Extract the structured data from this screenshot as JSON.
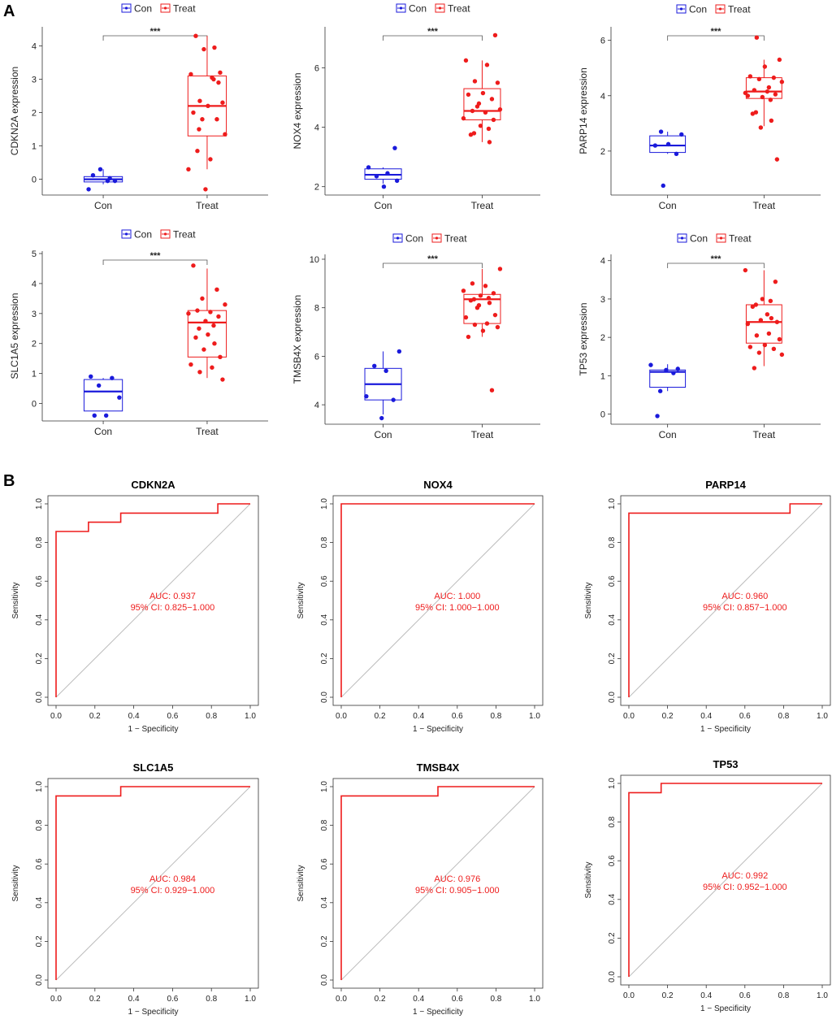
{
  "panels": {
    "a": "A",
    "b": "B"
  },
  "colors": {
    "con": "#1a1adb",
    "treat": "#ee1c1c",
    "diag": "#bdbdbd",
    "axis": "#333333"
  },
  "chart_data": [
    {
      "type": "box",
      "id": "box-cdkn2a",
      "gene": "CDKN2A",
      "ylabel": "CDKN2A expression",
      "categories": [
        "Con",
        "Treat"
      ],
      "legend": [
        "Con",
        "Treat"
      ],
      "significance": "***",
      "ylim": [
        -0.4,
        4.5
      ],
      "yticks": [
        0,
        1,
        2,
        3,
        4
      ],
      "boxes": [
        {
          "group": "Con",
          "min": -0.15,
          "q1": -0.08,
          "median": 0.0,
          "q3": 0.08,
          "max": 0.3
        },
        {
          "group": "Treat",
          "min": 0.3,
          "q1": 1.3,
          "median": 2.2,
          "q3": 3.1,
          "max": 4.3
        }
      ],
      "points": {
        "Con": [
          0.12,
          0.03,
          0.3,
          -0.05,
          -0.3,
          -0.05
        ],
        "Treat": [
          4.3,
          3.95,
          3.9,
          3.2,
          3.15,
          3.05,
          2.35,
          2.3,
          2.2,
          2.0,
          1.8,
          1.8,
          1.35,
          0.85,
          0.6,
          0.3,
          2.9,
          -0.3,
          3.0,
          1.5
        ]
      }
    },
    {
      "type": "box",
      "id": "box-nox4",
      "gene": "NOX4",
      "ylabel": "NOX4 expression",
      "categories": [
        "Con",
        "Treat"
      ],
      "legend": [
        "Con",
        "Treat"
      ],
      "significance": "***",
      "ylim": [
        1.8,
        7.3
      ],
      "yticks": [
        2,
        4,
        6
      ],
      "boxes": [
        {
          "group": "Con",
          "min": 2.1,
          "q1": 2.25,
          "median": 2.4,
          "q3": 2.6,
          "max": 2.65
        },
        {
          "group": "Treat",
          "min": 3.5,
          "q1": 4.25,
          "median": 4.55,
          "q3": 5.3,
          "max": 6.25
        }
      ],
      "points": {
        "Con": [
          3.3,
          2.65,
          2.45,
          2.35,
          2.2,
          2.0
        ],
        "Treat": [
          7.1,
          6.25,
          6.1,
          5.55,
          5.5,
          5.15,
          5.1,
          4.95,
          4.7,
          4.6,
          4.55,
          4.5,
          4.3,
          4.25,
          4.05,
          3.95,
          3.8,
          3.75,
          3.5,
          4.8
        ]
      }
    },
    {
      "type": "box",
      "id": "box-parp14",
      "gene": "PARP14",
      "ylabel": "PARP14 expression",
      "categories": [
        "Con",
        "Treat"
      ],
      "legend": [
        "Con",
        "Treat"
      ],
      "significance": "***",
      "ylim": [
        0.5,
        6.4
      ],
      "yticks": [
        2,
        4,
        6
      ],
      "boxes": [
        {
          "group": "Con",
          "min": 1.9,
          "q1": 1.95,
          "median": 2.2,
          "q3": 2.55,
          "max": 2.7
        },
        {
          "group": "Treat",
          "min": 2.9,
          "q1": 3.9,
          "median": 4.15,
          "q3": 4.65,
          "max": 5.3
        }
      ],
      "points": {
        "Con": [
          2.7,
          2.6,
          2.25,
          2.2,
          1.9,
          0.75
        ],
        "Treat": [
          6.1,
          5.3,
          5.05,
          4.7,
          4.65,
          4.6,
          4.5,
          4.2,
          4.15,
          4.1,
          4.05,
          3.95,
          3.85,
          3.4,
          3.35,
          3.1,
          2.85,
          1.7,
          4.0,
          4.3
        ]
      }
    },
    {
      "type": "box",
      "id": "box-slc1a5",
      "gene": "SLC1A5",
      "ylabel": "SLC1A5 expression",
      "categories": [
        "Con",
        "Treat"
      ],
      "legend": [
        "Con",
        "Treat"
      ],
      "significance": "***",
      "ylim": [
        -0.5,
        5.0
      ],
      "yticks": [
        0,
        1,
        2,
        3,
        4,
        5
      ],
      "boxes": [
        {
          "group": "Con",
          "min": -0.25,
          "q1": -0.25,
          "median": 0.4,
          "q3": 0.8,
          "max": 0.85
        },
        {
          "group": "Treat",
          "min": 0.85,
          "q1": 1.55,
          "median": 2.7,
          "q3": 3.1,
          "max": 4.5
        }
      ],
      "points": {
        "Con": [
          0.9,
          0.85,
          0.6,
          0.2,
          -0.4,
          -0.4
        ],
        "Treat": [
          4.6,
          3.8,
          3.5,
          3.3,
          3.1,
          3.05,
          3.0,
          2.9,
          2.75,
          2.6,
          2.5,
          2.2,
          2.0,
          1.8,
          1.55,
          1.3,
          1.2,
          1.05,
          0.8,
          2.3
        ]
      }
    },
    {
      "type": "box",
      "id": "box-tmsb4x",
      "gene": "TMSB4X",
      "ylabel": "TMSB4X expression",
      "categories": [
        "Con",
        "Treat"
      ],
      "legend": [
        "Con",
        "Treat"
      ],
      "significance": "***",
      "ylim": [
        3.3,
        10.1
      ],
      "yticks": [
        4,
        6,
        8,
        10
      ],
      "boxes": [
        {
          "group": "Con",
          "min": 3.6,
          "q1": 4.2,
          "median": 4.85,
          "q3": 5.5,
          "max": 6.2
        },
        {
          "group": "Treat",
          "min": 6.8,
          "q1": 7.35,
          "median": 8.35,
          "q3": 8.55,
          "max": 9.6
        }
      ],
      "points": {
        "Con": [
          6.2,
          5.6,
          5.4,
          4.35,
          4.2,
          3.45
        ],
        "Treat": [
          9.6,
          9.0,
          8.9,
          8.7,
          8.6,
          8.5,
          8.4,
          8.35,
          8.3,
          8.2,
          8.1,
          7.7,
          7.6,
          7.35,
          7.3,
          7.2,
          7.05,
          6.8,
          4.6,
          8.0
        ]
      }
    },
    {
      "type": "box",
      "id": "box-tp53",
      "gene": "TP53",
      "ylabel": "TP53 expression",
      "categories": [
        "Con",
        "Treat"
      ],
      "legend": [
        "Con",
        "Treat"
      ],
      "significance": "***",
      "ylim": [
        -0.2,
        4.1
      ],
      "yticks": [
        0,
        1,
        2,
        3,
        4
      ],
      "boxes": [
        {
          "group": "Con",
          "min": 0.6,
          "q1": 0.7,
          "median": 1.1,
          "q3": 1.15,
          "max": 1.3
        },
        {
          "group": "Treat",
          "min": 1.25,
          "q1": 1.85,
          "median": 2.4,
          "q3": 2.85,
          "max": 3.75
        }
      ],
      "points": {
        "Con": [
          1.28,
          1.18,
          1.15,
          1.07,
          0.6,
          -0.05
        ],
        "Treat": [
          3.75,
          3.45,
          3.0,
          2.95,
          2.85,
          2.8,
          2.5,
          2.45,
          2.4,
          2.35,
          2.1,
          2.05,
          1.95,
          1.8,
          1.75,
          1.7,
          1.6,
          1.55,
          1.2,
          2.6
        ]
      }
    },
    {
      "type": "roc",
      "id": "roc-cdkn2a",
      "title": "CDKN2A",
      "xlabel": "1 − Specificity",
      "ylabel": "Sensitivity",
      "xlim": [
        0,
        1
      ],
      "ylim": [
        0,
        1
      ],
      "ticks": [
        "0.0",
        "0.2",
        "0.4",
        "0.6",
        "0.8",
        "1.0"
      ],
      "fpr": [
        0,
        0,
        0.167,
        0.167,
        0.333,
        0.333,
        0.833,
        0.833,
        1.0
      ],
      "tpr": [
        0,
        0.857,
        0.857,
        0.905,
        0.905,
        0.952,
        0.952,
        1.0,
        1.0
      ],
      "auc_label": "AUC: 0.937",
      "ci_label": "95% CI: 0.825−1.000"
    },
    {
      "type": "roc",
      "id": "roc-nox4",
      "title": "NOX4",
      "xlabel": "1 − Specificity",
      "ylabel": "Sensitivity",
      "xlim": [
        0,
        1
      ],
      "ylim": [
        0,
        1
      ],
      "ticks": [
        "0.0",
        "0.2",
        "0.4",
        "0.6",
        "0.8",
        "1.0"
      ],
      "fpr": [
        0,
        0,
        1.0
      ],
      "tpr": [
        0,
        1.0,
        1.0
      ],
      "auc_label": "AUC: 1.000",
      "ci_label": "95% CI: 1.000−1.000"
    },
    {
      "type": "roc",
      "id": "roc-parp14",
      "title": "PARP14",
      "xlabel": "1 − Specificity",
      "ylabel": "Sensitivity",
      "xlim": [
        0,
        1
      ],
      "ylim": [
        0,
        1
      ],
      "ticks": [
        "0.0",
        "0.2",
        "0.4",
        "0.6",
        "0.8",
        "1.0"
      ],
      "fpr": [
        0,
        0,
        0.833,
        0.833,
        1.0
      ],
      "tpr": [
        0,
        0.952,
        0.952,
        1.0,
        1.0
      ],
      "auc_label": "AUC: 0.960",
      "ci_label": "95% CI: 0.857−1.000"
    },
    {
      "type": "roc",
      "id": "roc-slc1a5",
      "title": "SLC1A5",
      "xlabel": "1 − Specificity",
      "ylabel": "Sensitivity",
      "xlim": [
        0,
        1
      ],
      "ylim": [
        0,
        1
      ],
      "ticks": [
        "0.0",
        "0.2",
        "0.4",
        "0.6",
        "0.8",
        "1.0"
      ],
      "fpr": [
        0,
        0,
        0.333,
        0.333,
        1.0
      ],
      "tpr": [
        0,
        0.952,
        0.952,
        1.0,
        1.0
      ],
      "auc_label": "AUC: 0.984",
      "ci_label": "95% CI: 0.929−1.000"
    },
    {
      "type": "roc",
      "id": "roc-tmsb4x",
      "title": "TMSB4X",
      "xlabel": "1 − Specificity",
      "ylabel": "Sensitivity",
      "xlim": [
        0,
        1
      ],
      "ylim": [
        0,
        1
      ],
      "ticks": [
        "0.0",
        "0.2",
        "0.4",
        "0.6",
        "0.8",
        "1.0"
      ],
      "fpr": [
        0,
        0,
        0.5,
        0.5,
        1.0
      ],
      "tpr": [
        0,
        0.952,
        0.952,
        1.0,
        1.0
      ],
      "auc_label": "AUC: 0.976",
      "ci_label": "95% CI: 0.905−1.000"
    },
    {
      "type": "roc",
      "id": "roc-tp53",
      "title": "TP53",
      "xlabel": "1 − Specificity",
      "ylabel": "Sensitivity",
      "xlim": [
        0,
        1
      ],
      "ylim": [
        0,
        1
      ],
      "ticks": [
        "0.0",
        "0.2",
        "0.4",
        "0.6",
        "0.8",
        "1.0"
      ],
      "fpr": [
        0,
        0,
        0.167,
        0.167,
        1.0
      ],
      "tpr": [
        0,
        0.952,
        0.952,
        1.0,
        1.0
      ],
      "auc_label": "AUC: 0.992",
      "ci_label": "95% CI: 0.952−1.000"
    }
  ]
}
